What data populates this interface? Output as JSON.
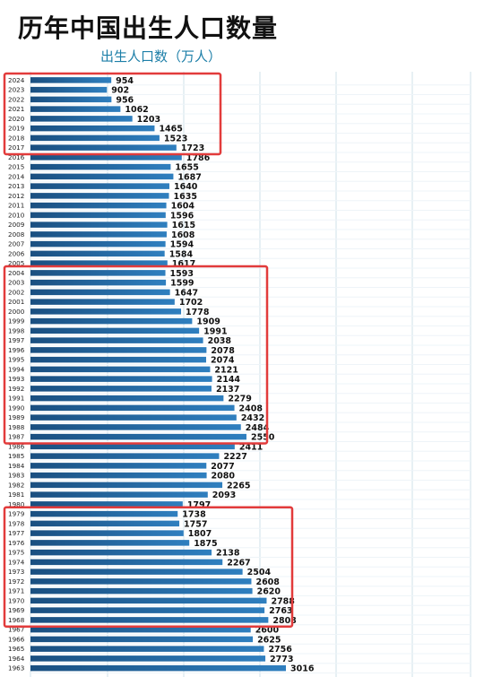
{
  "title": "历年中国出生人口数量",
  "subtitle": "出生人口数（万人）",
  "colors": {
    "bar": "#1f5f96",
    "bar_light": "#3d8cc4",
    "highlight": "#e23b3b",
    "grid": "#cfe0ea",
    "subtitle": "#1d7fa8"
  },
  "chart_data": {
    "type": "bar",
    "orientation": "horizontal",
    "title": "历年中国出生人口数量",
    "subtitle": "出生人口数（万人）",
    "xlabel": "",
    "ylabel": "",
    "xlim": [
      0,
      3600
    ],
    "grid": true,
    "legend": "none",
    "categories": [
      "2024",
      "2023",
      "2022",
      "2021",
      "2020",
      "2019",
      "2018",
      "2017",
      "2016",
      "2015",
      "2014",
      "2013",
      "2012",
      "2011",
      "2010",
      "2009",
      "2008",
      "2007",
      "2006",
      "2005",
      "2004",
      "2003",
      "2002",
      "2001",
      "2000",
      "1999",
      "1998",
      "1997",
      "1996",
      "1995",
      "1994",
      "1993",
      "1992",
      "1991",
      "1990",
      "1989",
      "1988",
      "1987",
      "1986",
      "1985",
      "1984",
      "1983",
      "1982",
      "1981",
      "1980",
      "1979",
      "1978",
      "1977",
      "1976",
      "1975",
      "1974",
      "1973",
      "1972",
      "1971",
      "1970",
      "1969",
      "1968",
      "1967",
      "1966",
      "1965",
      "1964",
      "1963"
    ],
    "values": [
      954,
      902,
      956,
      1062,
      1203,
      1465,
      1523,
      1723,
      1786,
      1655,
      1687,
      1640,
      1635,
      1604,
      1596,
      1615,
      1608,
      1594,
      1584,
      1617,
      1593,
      1599,
      1647,
      1702,
      1778,
      1909,
      1991,
      2038,
      2078,
      2074,
      2121,
      2144,
      2137,
      2279,
      2408,
      2432,
      2484,
      2550,
      2411,
      2227,
      2077,
      2080,
      2265,
      2093,
      1797,
      1738,
      1757,
      1807,
      1875,
      2138,
      2267,
      2504,
      2608,
      2620,
      2788,
      2763,
      2808,
      2600,
      2625,
      2756,
      2773,
      3016
    ],
    "highlight_groups": [
      {
        "from": "2024",
        "to": "2017"
      },
      {
        "from": "2004",
        "to": "1987"
      },
      {
        "from": "1979",
        "to": "1968"
      }
    ]
  }
}
